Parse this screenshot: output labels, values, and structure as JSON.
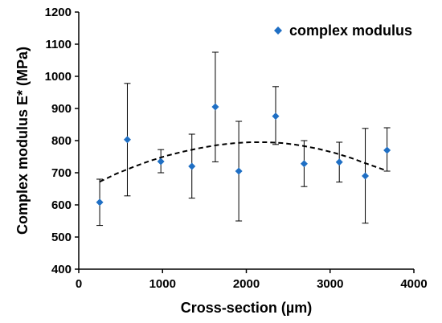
{
  "chart_data": {
    "type": "scatter",
    "title": "",
    "xlabel": "Cross-section (µm)",
    "ylabel": "Complex modulus E* (MPa)",
    "xlim": [
      0,
      4000
    ],
    "ylim": [
      400,
      1200
    ],
    "x_ticks": [
      0,
      1000,
      2000,
      3000,
      4000
    ],
    "y_ticks": [
      400,
      500,
      600,
      700,
      800,
      900,
      1000,
      1100,
      1200
    ],
    "x_tick_labels": [
      "0",
      "1000",
      "2000",
      "3000",
      "4000"
    ],
    "y_tick_labels": [
      "400",
      "500",
      "600",
      "700",
      "800",
      "900",
      "1000",
      "1100",
      "1200"
    ],
    "grid": false,
    "legend_position": "top-right",
    "series": [
      {
        "name": "complex modulus",
        "color": "#1f6fc4",
        "marker": "diamond",
        "x": [
          250,
          580,
          980,
          1350,
          1630,
          1910,
          2350,
          2690,
          3110,
          3420,
          3680
        ],
        "y": [
          608,
          803,
          735,
          720,
          905,
          705,
          876,
          728,
          733,
          690,
          770
        ],
        "error_upper": [
          680,
          978,
          772,
          820,
          1075,
          860,
          968,
          800,
          795,
          838,
          840
        ],
        "error_lower": [
          536,
          628,
          700,
          621,
          734,
          550,
          788,
          657,
          671,
          543,
          705
        ]
      }
    ],
    "trendline": {
      "type": "polynomial-2",
      "style": "dashed",
      "color": "#000000",
      "x": [
        250,
        450,
        650,
        850,
        1050,
        1250,
        1450,
        1650,
        1850,
        2050,
        2250,
        2450,
        2650,
        2850,
        3050,
        3250,
        3450,
        3680
      ],
      "y": [
        672,
        697,
        718,
        737,
        753,
        766,
        777,
        786,
        792,
        795,
        795,
        792,
        785,
        775,
        762,
        746,
        727,
        706
      ]
    }
  }
}
